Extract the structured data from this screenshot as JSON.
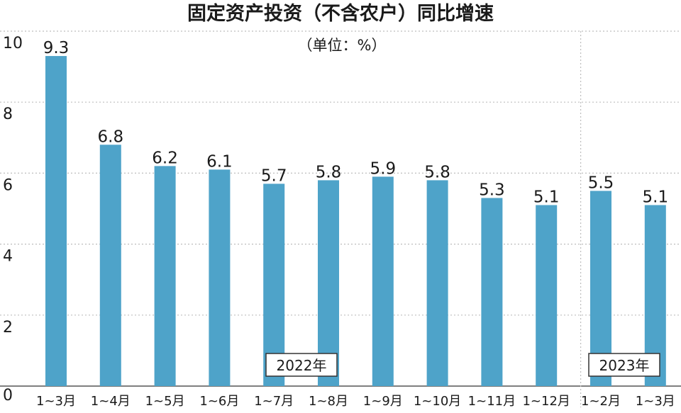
{
  "chart_data": {
    "type": "bar",
    "title": "固定资产投资（不含农户）同比增速",
    "unit_note": "（单位：%）",
    "categories": [
      "1~3月",
      "1~4月",
      "1~5月",
      "1~6月",
      "1~7月",
      "1~8月",
      "1~9月",
      "1~10月",
      "1~11月",
      "1~12月",
      "1~2月",
      "1~3月"
    ],
    "values": [
      9.3,
      6.8,
      6.2,
      6.1,
      5.7,
      5.8,
      5.9,
      5.8,
      5.3,
      5.1,
      5.5,
      5.1
    ],
    "value_labels": [
      "9.3",
      "6.8",
      "6.2",
      "6.1",
      "5.7",
      "5.8",
      "5.9",
      "5.8",
      "5.3",
      "5.1",
      "5.5",
      "5.1"
    ],
    "ylim": [
      0,
      10
    ],
    "yticks": [
      0,
      2,
      4,
      6,
      8,
      10
    ],
    "ytick_labels": [
      "0",
      "2",
      "4",
      "6",
      "8",
      "10"
    ],
    "grid": true,
    "xlabel": "",
    "ylabel": "",
    "groups": [
      {
        "label": "2022年",
        "start": 0,
        "end": 9
      },
      {
        "label": "2023年",
        "start": 10,
        "end": 11
      }
    ],
    "colors": {
      "bar": "#4ea3c9",
      "grid": "#bdbdbd",
      "text": "#1a1a1a",
      "box_border": "#333333"
    }
  }
}
